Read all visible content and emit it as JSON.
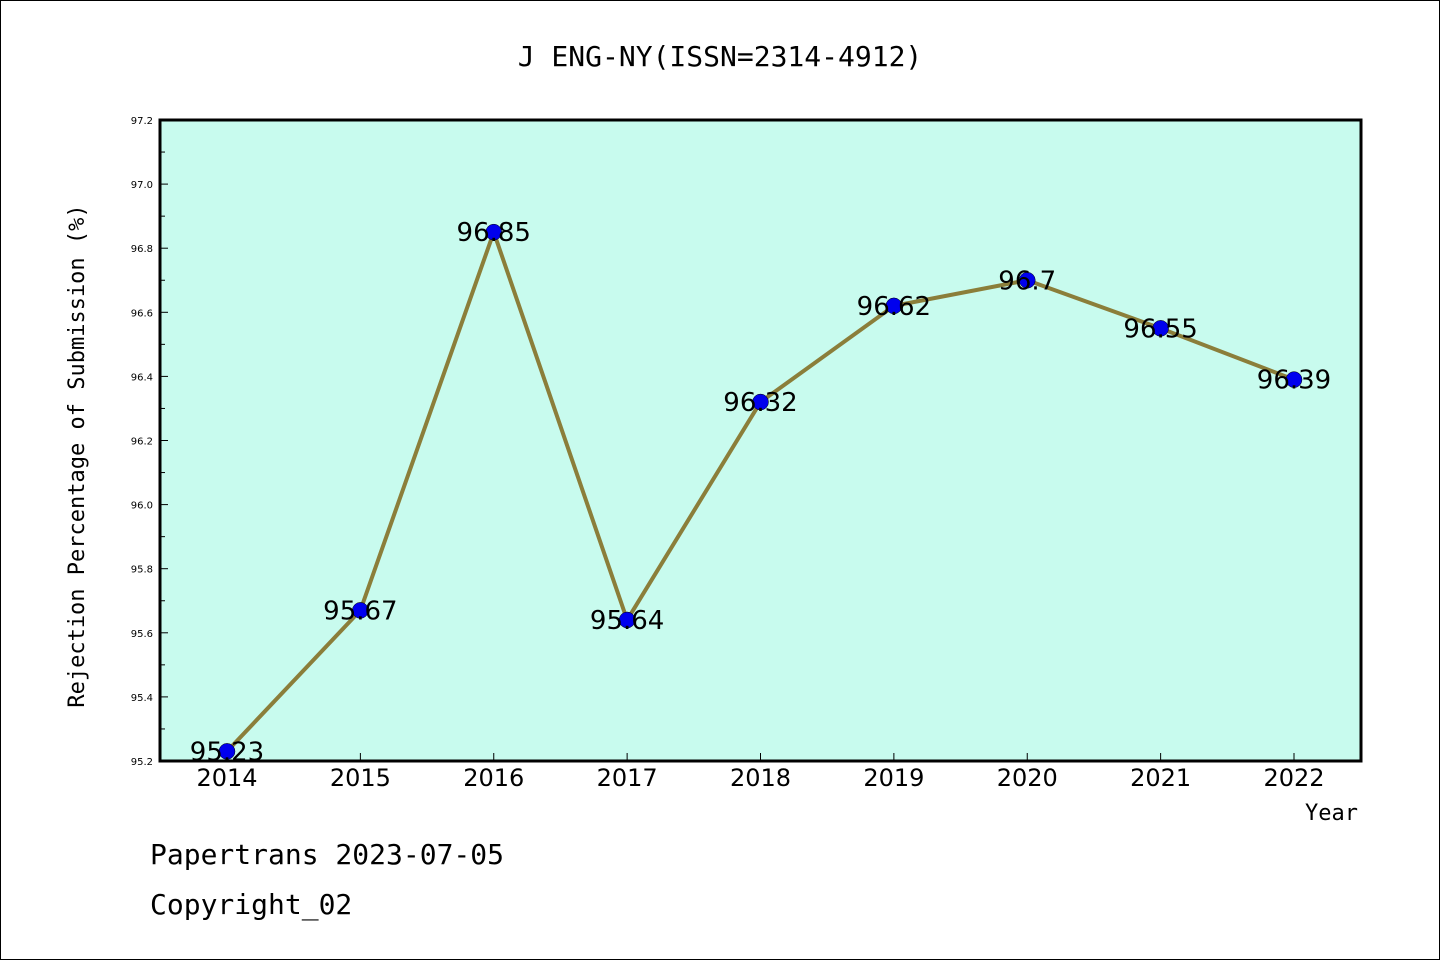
{
  "chart_data": {
    "type": "line",
    "title": "J ENG-NY(ISSN=2314-4912)",
    "xlabel": "Year",
    "ylabel": "Rejection Percentage of Submission (%)",
    "x": [
      "2014",
      "2015",
      "2016",
      "2017",
      "2018",
      "2019",
      "2020",
      "2021",
      "2022"
    ],
    "series": [
      {
        "values": [
          95.23,
          95.67,
          96.85,
          95.64,
          96.32,
          96.62,
          96.7,
          96.55,
          96.39
        ],
        "labels": [
          "95.23",
          "95.67",
          "96.85",
          "95.64",
          "96.32",
          "96.62",
          "96.7",
          "96.55",
          "96.39"
        ],
        "line_color": "#8b7e3a",
        "marker_color": "#0000ee"
      }
    ],
    "ylim": [
      95.2,
      97.2
    ],
    "yticks": [
      "95.2",
      "95.4",
      "95.6",
      "95.8",
      "96.0",
      "96.2",
      "96.4",
      "96.6",
      "96.8",
      "97.0",
      "97.2"
    ],
    "plot_background": "#c8fbee",
    "grid": false,
    "legend": "none"
  },
  "footer": {
    "line1": "Papertrans 2023-07-05",
    "line2": "Copyright_02"
  }
}
